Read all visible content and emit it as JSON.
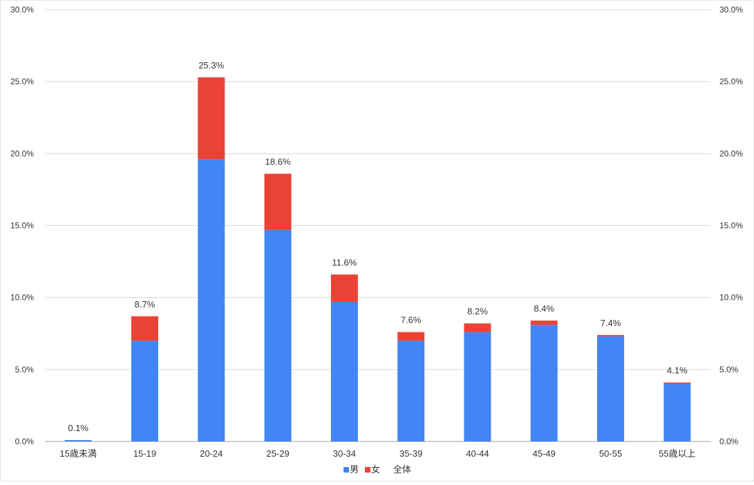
{
  "chart_data": {
    "type": "bar",
    "stacked": true,
    "categories": [
      "15歳未満",
      "15-19",
      "20-24",
      "25-29",
      "30-34",
      "35-39",
      "40-44",
      "45-49",
      "50-55",
      "55歳以上"
    ],
    "series": [
      {
        "name": "男",
        "color": "#4285f4",
        "values": [
          0.1,
          7.0,
          19.6,
          14.7,
          9.7,
          7.0,
          7.6,
          8.1,
          7.3,
          4.0
        ]
      },
      {
        "name": "女",
        "color": "#ea4335",
        "values": [
          0.0,
          1.7,
          5.7,
          3.9,
          1.9,
          0.6,
          0.6,
          0.3,
          0.1,
          0.1
        ]
      }
    ],
    "totals_name": "全体",
    "totals": [
      0.1,
      8.7,
      25.3,
      18.6,
      11.6,
      7.6,
      8.2,
      8.4,
      7.4,
      4.1
    ],
    "total_labels": [
      "0.1%",
      "8.7%",
      "25.3%",
      "18.6%",
      "11.6%",
      "7.6%",
      "8.2%",
      "8.4%",
      "7.4%",
      "4.1%"
    ],
    "ylim": [
      0,
      30
    ],
    "y_ticks": [
      0,
      5,
      10,
      15,
      20,
      25,
      30
    ],
    "y_tick_labels": [
      "0.0%",
      "5.0%",
      "10.0%",
      "15.0%",
      "20.0%",
      "25.0%",
      "30.0%"
    ],
    "dual_y_axis_labels": true,
    "grid": true,
    "legend_position": "bottom",
    "gridline_color": "#d9d9d9",
    "label_color": "#333333"
  }
}
